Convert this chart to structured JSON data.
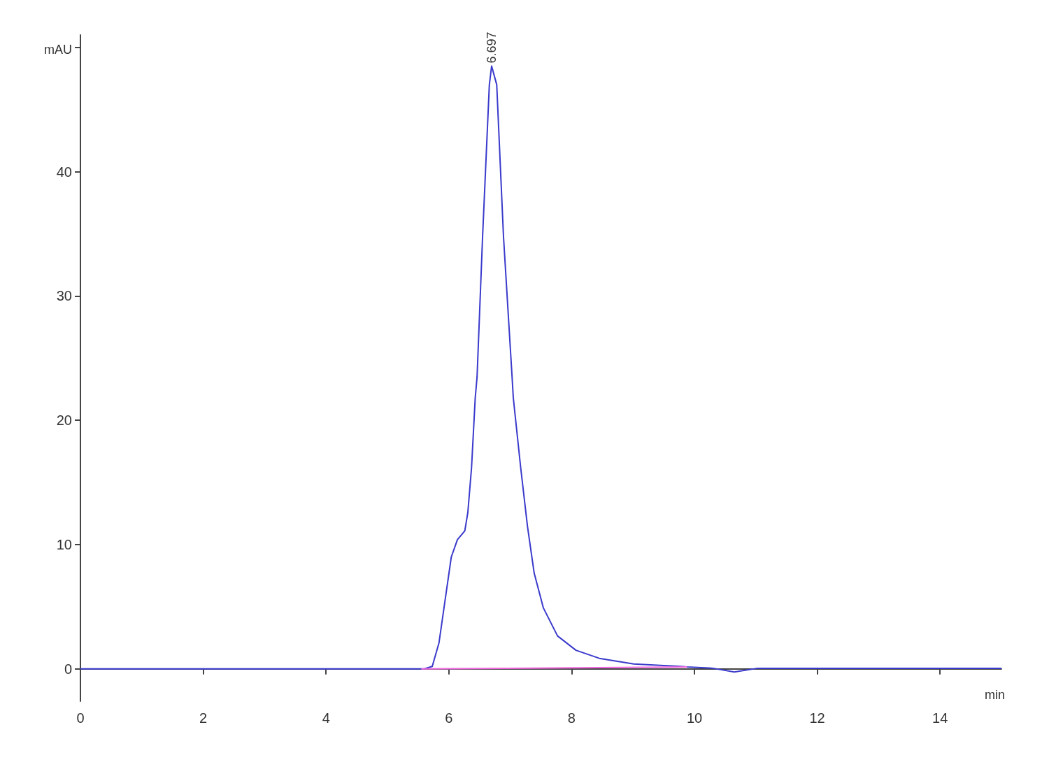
{
  "chart_data": {
    "type": "line",
    "xlabel": "min",
    "ylabel": "mAU",
    "xlim": [
      0,
      15
    ],
    "ylim": [
      -2.6,
      51
    ],
    "xticks": [
      0,
      2,
      4,
      6,
      8,
      10,
      12,
      14
    ],
    "yticks": [
      0,
      10,
      20,
      30,
      40,
      {
        "value": 50,
        "label": null
      }
    ],
    "marker": "none",
    "series": [
      {
        "color": "#3a3acc",
        "x": [
          0,
          5.6,
          5.73,
          5.84,
          5.95,
          6.04,
          6.14,
          6.26,
          6.31,
          6.37,
          6.43,
          6.46,
          6.55,
          6.66,
          6.697,
          6.78,
          6.89,
          7.03,
          7.05,
          7.17,
          7.28,
          7.39,
          7.54,
          7.77,
          8.07,
          8.45,
          9.01,
          9.77,
          9.88,
          10.3,
          10.65,
          11.03,
          12,
          15
        ],
        "values": [
          0,
          0,
          0.2,
          2.1,
          5.9,
          9,
          10.4,
          11.1,
          12.6,
          16.2,
          21.8,
          23.5,
          34.8,
          47,
          48.5,
          47,
          34.8,
          23.5,
          21.8,
          16.2,
          11.5,
          7.7,
          4.9,
          2.65,
          1.5,
          0.85,
          0.4,
          0.2,
          0.15,
          0.05,
          -0.25,
          0.05,
          0.05,
          0.05
        ]
      },
      {
        "type": "line",
        "color": "#ee66dd",
        "x": [
          5.55,
          9.88
        ],
        "values": [
          0,
          0.15
        ]
      }
    ],
    "annotations": [
      {
        "text": "6.697",
        "x": 6.697,
        "y": 48.5
      }
    ]
  }
}
